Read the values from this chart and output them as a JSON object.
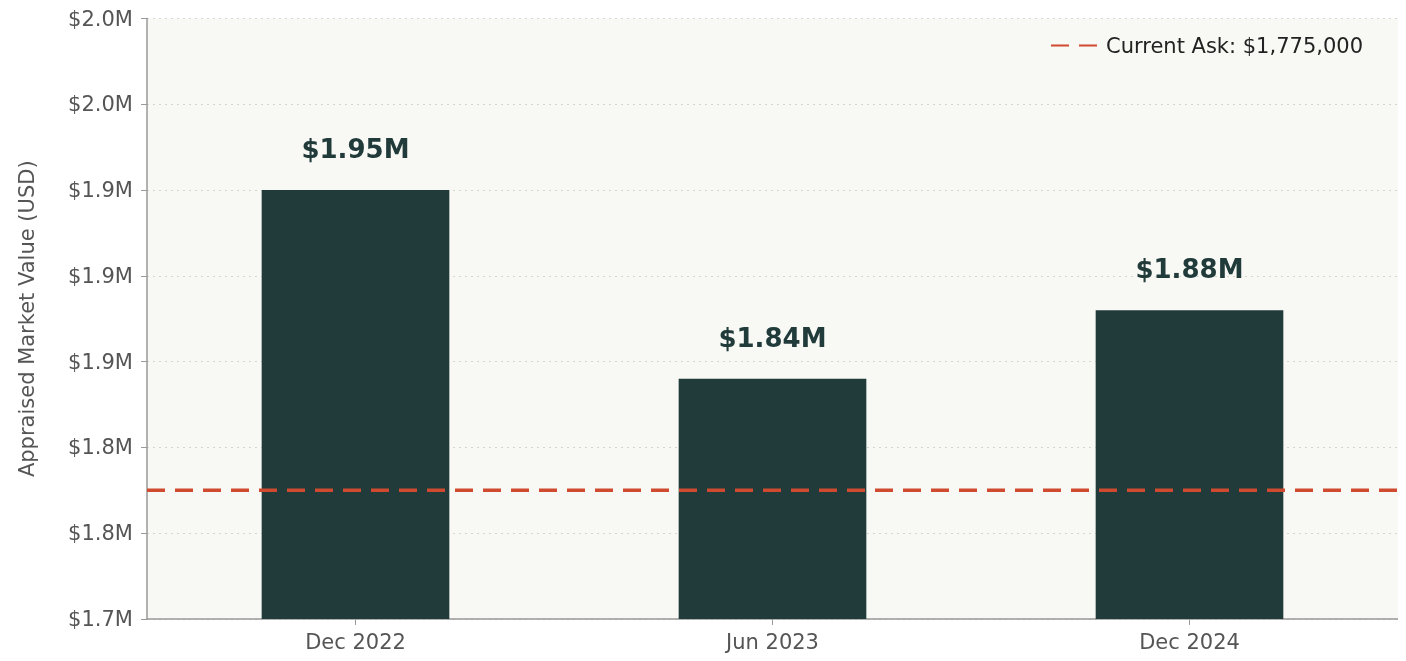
{
  "chart_data": {
    "type": "bar",
    "ylabel": "Appraised Market Value (USD)",
    "categories": [
      "Dec 2022",
      "Jun 2023",
      "Dec 2024"
    ],
    "values": [
      1.95,
      1.84,
      1.88
    ],
    "value_labels": [
      "$1.95M",
      "$1.84M",
      "$1.88M"
    ],
    "color": "#213a3a",
    "ylim": [
      1.7,
      2.05
    ],
    "yticks": [
      {
        "value": 1.7,
        "label": "$1.7M"
      },
      {
        "value": 1.75,
        "label": "$1.8M"
      },
      {
        "value": 1.8,
        "label": "$1.8M"
      },
      {
        "value": 1.85,
        "label": "$1.9M"
      },
      {
        "value": 1.9,
        "label": "$1.9M"
      },
      {
        "value": 1.95,
        "label": "$1.9M"
      },
      {
        "value": 2.0,
        "label": "$2.0M"
      },
      {
        "value": 2.05,
        "label": "$2.0M"
      }
    ],
    "ref_lines": [
      {
        "axis": "y",
        "value": 1.775,
        "label": "Current Ask: $1,775,000",
        "color": "#d04a2f",
        "line_style": "dashed"
      }
    ],
    "grid": "y",
    "legend": "top right"
  }
}
